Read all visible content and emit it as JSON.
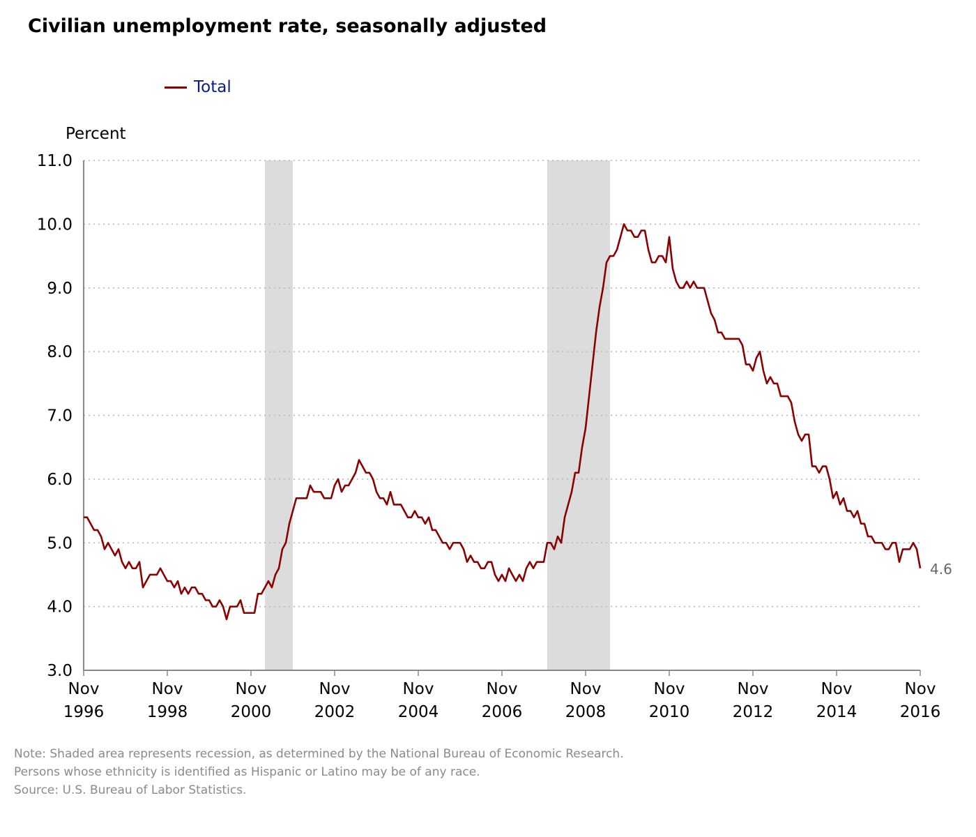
{
  "chart_data": {
    "type": "line",
    "title": "Civilian unemployment rate, seasonally adjusted",
    "ylabel": "Percent",
    "xlabel": "",
    "ylim": [
      3.0,
      11.0
    ],
    "yticks": [
      "3.0",
      "4.0",
      "5.0",
      "6.0",
      "7.0",
      "8.0",
      "9.0",
      "10.0",
      "11.0"
    ],
    "xticks": [
      {
        "month": "Nov",
        "year": "1996"
      },
      {
        "month": "Nov",
        "year": "1998"
      },
      {
        "month": "Nov",
        "year": "2000"
      },
      {
        "month": "Nov",
        "year": "2002"
      },
      {
        "month": "Nov",
        "year": "2004"
      },
      {
        "month": "Nov",
        "year": "2006"
      },
      {
        "month": "Nov",
        "year": "2008"
      },
      {
        "month": "Nov",
        "year": "2010"
      },
      {
        "month": "Nov",
        "year": "2012"
      },
      {
        "month": "Nov",
        "year": "2014"
      },
      {
        "month": "Nov",
        "year": "2016"
      }
    ],
    "x_start": "1996-11",
    "x_end": "2016-11",
    "grid": true,
    "legend_position": "top-left",
    "recessions": [
      {
        "start": "2001-03",
        "end": "2001-11"
      },
      {
        "start": "2007-12",
        "end": "2009-06"
      }
    ],
    "end_label": "4.6",
    "series": [
      {
        "name": "Total",
        "color": "#8b0000",
        "start": "1996-11",
        "values": [
          5.4,
          5.4,
          5.3,
          5.2,
          5.2,
          5.1,
          4.9,
          5.0,
          4.9,
          4.8,
          4.9,
          4.7,
          4.6,
          4.7,
          4.6,
          4.6,
          4.7,
          4.3,
          4.4,
          4.5,
          4.5,
          4.5,
          4.6,
          4.5,
          4.4,
          4.4,
          4.3,
          4.4,
          4.2,
          4.3,
          4.2,
          4.3,
          4.3,
          4.2,
          4.2,
          4.1,
          4.1,
          4.0,
          4.0,
          4.1,
          4.0,
          3.8,
          4.0,
          4.0,
          4.0,
          4.1,
          3.9,
          3.9,
          3.9,
          3.9,
          4.2,
          4.2,
          4.3,
          4.4,
          4.3,
          4.5,
          4.6,
          4.9,
          5.0,
          5.3,
          5.5,
          5.7,
          5.7,
          5.7,
          5.7,
          5.9,
          5.8,
          5.8,
          5.8,
          5.7,
          5.7,
          5.7,
          5.9,
          6.0,
          5.8,
          5.9,
          5.9,
          6.0,
          6.1,
          6.3,
          6.2,
          6.1,
          6.1,
          6.0,
          5.8,
          5.7,
          5.7,
          5.6,
          5.8,
          5.6,
          5.6,
          5.6,
          5.5,
          5.4,
          5.4,
          5.5,
          5.4,
          5.4,
          5.3,
          5.4,
          5.2,
          5.2,
          5.1,
          5.0,
          5.0,
          4.9,
          5.0,
          5.0,
          5.0,
          4.9,
          4.7,
          4.8,
          4.7,
          4.7,
          4.6,
          4.6,
          4.7,
          4.7,
          4.5,
          4.4,
          4.5,
          4.4,
          4.6,
          4.5,
          4.4,
          4.5,
          4.4,
          4.6,
          4.7,
          4.6,
          4.7,
          4.7,
          4.7,
          5.0,
          5.0,
          4.9,
          5.1,
          5.0,
          5.4,
          5.6,
          5.8,
          6.1,
          6.1,
          6.5,
          6.8,
          7.3,
          7.8,
          8.3,
          8.7,
          9.0,
          9.4,
          9.5,
          9.5,
          9.6,
          9.8,
          10.0,
          9.9,
          9.9,
          9.8,
          9.8,
          9.9,
          9.9,
          9.6,
          9.4,
          9.4,
          9.5,
          9.5,
          9.4,
          9.8,
          9.3,
          9.1,
          9.0,
          9.0,
          9.1,
          9.0,
          9.1,
          9.0,
          9.0,
          9.0,
          8.8,
          8.6,
          8.5,
          8.3,
          8.3,
          8.2,
          8.2,
          8.2,
          8.2,
          8.2,
          8.1,
          7.8,
          7.8,
          7.7,
          7.9,
          8.0,
          7.7,
          7.5,
          7.6,
          7.5,
          7.5,
          7.3,
          7.3,
          7.3,
          7.2,
          6.9,
          6.7,
          6.6,
          6.7,
          6.7,
          6.2,
          6.2,
          6.1,
          6.2,
          6.2,
          6.0,
          5.7,
          5.8,
          5.6,
          5.7,
          5.5,
          5.5,
          5.4,
          5.5,
          5.3,
          5.3,
          5.1,
          5.1,
          5.0,
          5.0,
          5.0,
          4.9,
          4.9,
          5.0,
          5.0,
          4.7,
          4.9,
          4.9,
          4.9,
          5.0,
          4.9,
          4.6
        ]
      }
    ]
  },
  "notes": [
    "Note: Shaded area represents recession, as determined by the National Bureau of Economic Research.",
    "Persons whose ethnicity is identified as Hispanic or Latino may be of any race.",
    "Source: U.S. Bureau of Labor Statistics."
  ]
}
